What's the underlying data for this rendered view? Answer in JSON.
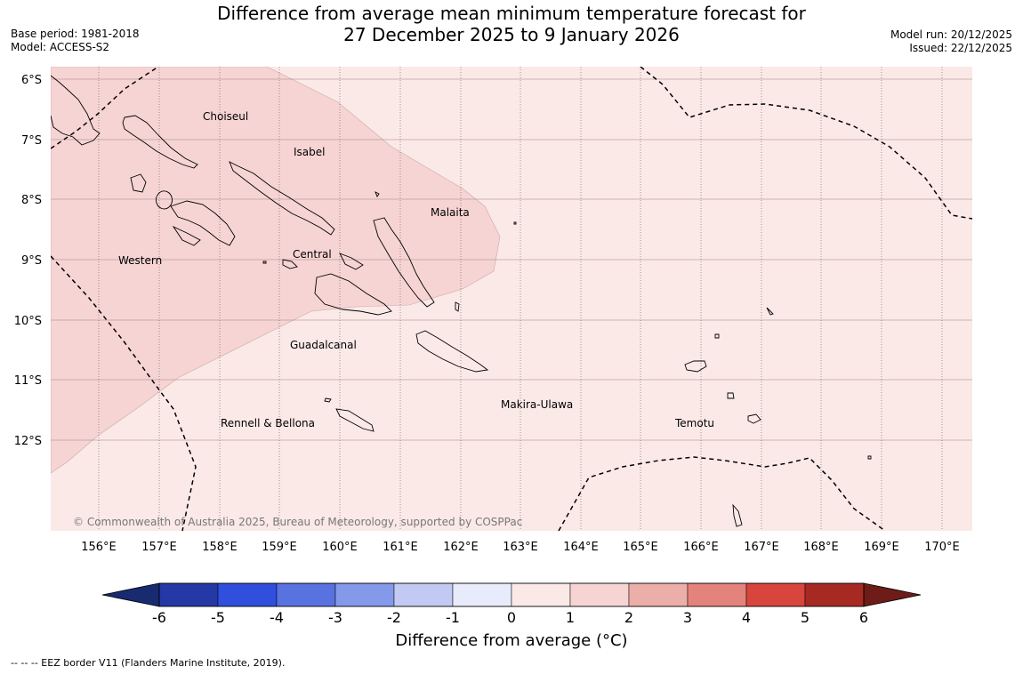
{
  "title": {
    "line1": "Difference from average mean minimum temperature forecast for",
    "line2": "27 December 2025 to 9 January 2026"
  },
  "meta_left": {
    "base_period": "Base period: 1981-2018",
    "model": "Model: ACCESS-S2"
  },
  "meta_right": {
    "model_run": "Model run: 20/12/2025",
    "issued": "Issued: 22/12/2025"
  },
  "latitude_labels": [
    "6°S",
    "7°S",
    "8°S",
    "9°S",
    "10°S",
    "11°S",
    "12°S"
  ],
  "longitude_labels": [
    "156°E",
    "157°E",
    "158°E",
    "159°E",
    "160°E",
    "161°E",
    "162°E",
    "163°E",
    "164°E",
    "165°E",
    "166°E",
    "167°E",
    "168°E",
    "169°E",
    "170°E"
  ],
  "regions": [
    "Choiseul",
    "Isabel",
    "Malaita",
    "Western",
    "Central",
    "Guadalcanal",
    "Rennell & Bellona",
    "Makira-Ulawa",
    "Temotu"
  ],
  "copyright": "© Commonwealth of Australia 2025, Bureau of Meteorology, supported by COSPPac",
  "colorbar": {
    "ticks": [
      "-6",
      "-5",
      "-4",
      "-3",
      "-2",
      "-1",
      "0",
      "1",
      "2",
      "3",
      "4",
      "5",
      "6"
    ],
    "colors": [
      "#2438a6",
      "#2f4fdc",
      "#5872e0",
      "#8599ea",
      "#c2caf3",
      "#e8ebfb",
      "#fbe9e8",
      "#f6d4d3",
      "#ecaea9",
      "#e4837b",
      "#d8453c",
      "#a72a22"
    ],
    "low_extend_color": "#182a70",
    "high_extend_color": "#6e1c17",
    "label": "Difference from average (°C)"
  },
  "footnote": "--  --  -- EEZ border V11 (Flanders Marine Institute, 2019).",
  "fill_colors": {
    "background_class": "#fbe9e8",
    "higher_class": "#f6d4d3"
  }
}
